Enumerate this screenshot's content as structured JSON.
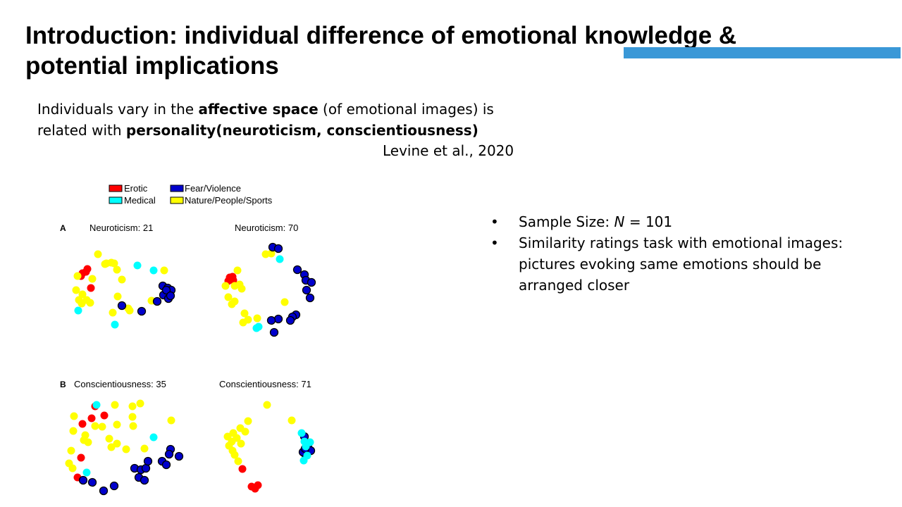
{
  "title": "Introduction: individual difference of emotional knowledge & potential implications",
  "intro": {
    "line1_before": "Individuals vary in the ",
    "line1_bold": "affective space",
    "line1_after": " (of emotional images) is",
    "line2_before": "related with ",
    "line2_bold": "personality(neuroticism, conscientiousness)"
  },
  "citation": "Levine et al., 2020",
  "bullets": {
    "marker": "•",
    "b1_before": "Sample Size: ",
    "b1_italic": "N",
    "b1_after": " = 101",
    "b2": "Similarity ratings task with emotional images: pictures evoking same emotions should be arranged closer"
  },
  "colors": {
    "accent_bar": "#3a98d7",
    "erotic": "#ff0000",
    "medical": "#00ffff",
    "fear_violence": "#0000cc",
    "nature": "#ffff00"
  },
  "figure": {
    "legend": [
      {
        "label": "Erotic",
        "color": "#ff0000"
      },
      {
        "label": "Fear/Violence",
        "color": "#0000cc"
      },
      {
        "label": "Medical",
        "color": "#00ffff"
      },
      {
        "label": "Nature/People/Sports",
        "color": "#ffff00"
      }
    ],
    "panel_a_letter": "A",
    "panel_b_letter": "B",
    "subplots": [
      {
        "label": "Neuroticism: 21"
      },
      {
        "label": "Neuroticism: 70"
      },
      {
        "label": "Conscientiousness: 35"
      },
      {
        "label": "Conscientiousness: 71"
      }
    ]
  }
}
